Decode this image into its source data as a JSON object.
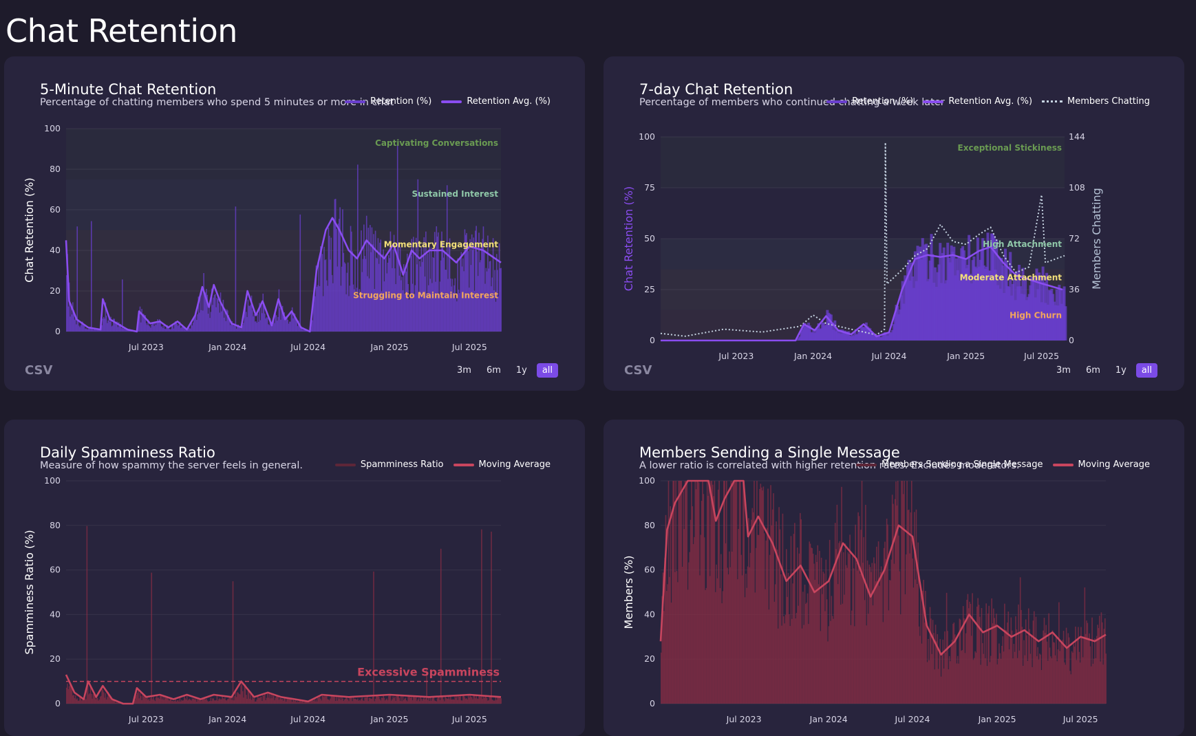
{
  "page": {
    "title": "Chat Retention"
  },
  "colors": {
    "purple": "#8a4df0",
    "purple_fill": "#6a3fcf",
    "red": "#c8455e",
    "red_fill": "#8a2e44",
    "dotted": "#c6d4e2",
    "accent": "#7b4be6"
  },
  "common": {
    "csv_label": "CSV",
    "ranges": [
      "3m",
      "6m",
      "1y",
      "all"
    ],
    "active_range": "all"
  },
  "chart_data": [
    {
      "id": "five_min",
      "type": "area",
      "title": "5-Minute Chat Retention",
      "subtitle": "Percentage of chatting members who spend 5 minutes or more in chat",
      "legend": [
        "Retention (%)",
        "Retention Avg. (%)"
      ],
      "ylabel": "Chat Retention (%)",
      "ylim": [
        0,
        100
      ],
      "yticks": [
        0,
        20,
        40,
        60,
        80,
        100
      ],
      "xlim": [
        "2023-01-01",
        "2025-09-10"
      ],
      "xticks": [
        "Jul 2023",
        "Jan 2024",
        "Jul 2024",
        "Jan 2025",
        "Jul 2025"
      ],
      "bands": [
        {
          "label": "Captivating Conversations",
          "from": 75,
          "to": 100,
          "color": "#6a9b52"
        },
        {
          "label": "Sustained Interest",
          "from": 50,
          "to": 75,
          "color": "#8fc7a8"
        },
        {
          "label": "Momentary Engagement",
          "from": 25,
          "to": 50,
          "color": "#f3e07a"
        },
        {
          "label": "Struggling to Maintain Interest",
          "from": 0,
          "to": 25,
          "color": "#f2a65e"
        }
      ],
      "avg_points": [
        [
          "2023-01-01",
          45
        ],
        [
          "2023-01-08",
          15
        ],
        [
          "2023-01-25",
          6
        ],
        [
          "2023-02-20",
          2
        ],
        [
          "2023-03-20",
          1
        ],
        [
          "2023-03-25",
          16
        ],
        [
          "2023-04-10",
          6
        ],
        [
          "2023-05-20",
          1
        ],
        [
          "2023-06-10",
          0
        ],
        [
          "2023-06-15",
          10
        ],
        [
          "2023-07-10",
          4
        ],
        [
          "2023-08-01",
          5
        ],
        [
          "2023-08-20",
          2
        ],
        [
          "2023-09-10",
          5
        ],
        [
          "2023-10-01",
          1
        ],
        [
          "2023-10-20",
          8
        ],
        [
          "2023-11-05",
          22
        ],
        [
          "2023-11-20",
          12
        ],
        [
          "2023-12-01",
          23
        ],
        [
          "2023-12-15",
          15
        ],
        [
          "2024-01-10",
          4
        ],
        [
          "2024-02-01",
          2
        ],
        [
          "2024-02-15",
          20
        ],
        [
          "2024-03-05",
          8
        ],
        [
          "2024-03-20",
          15
        ],
        [
          "2024-04-10",
          3
        ],
        [
          "2024-04-25",
          16
        ],
        [
          "2024-05-10",
          6
        ],
        [
          "2024-05-25",
          10
        ],
        [
          "2024-06-15",
          2
        ],
        [
          "2024-07-05",
          0
        ],
        [
          "2024-07-20",
          30
        ],
        [
          "2024-08-10",
          50
        ],
        [
          "2024-08-25",
          56
        ],
        [
          "2024-09-10",
          50
        ],
        [
          "2024-10-01",
          40
        ],
        [
          "2024-10-20",
          36
        ],
        [
          "2024-11-10",
          45
        ],
        [
          "2024-12-01",
          40
        ],
        [
          "2024-12-20",
          36
        ],
        [
          "2025-01-10",
          43
        ],
        [
          "2025-02-01",
          28
        ],
        [
          "2025-02-20",
          40
        ],
        [
          "2025-03-10",
          36
        ],
        [
          "2025-04-01",
          40
        ],
        [
          "2025-05-01",
          40
        ],
        [
          "2025-06-01",
          34
        ],
        [
          "2025-07-01",
          42
        ],
        [
          "2025-08-01",
          40
        ],
        [
          "2025-09-10",
          34
        ]
      ],
      "bars_window": [
        "2023-01-01",
        "2025-09-10"
      ]
    },
    {
      "id": "seven_day",
      "type": "area",
      "title": "7-day Chat Retention",
      "subtitle": "Percentage of members who continued chatting a week later",
      "legend": [
        "Retention (%)",
        "Retention Avg. (%)",
        "Members Chatting"
      ],
      "ylabel": "Chat Retention (%)",
      "ylabel_right": "Members Chatting",
      "ylim": [
        0,
        100
      ],
      "yticks": [
        0,
        25,
        50,
        75,
        100
      ],
      "ylim_right": [
        0,
        144
      ],
      "yticks_right": [
        0,
        36,
        72,
        108,
        144
      ],
      "xlim": [
        "2023-01-01",
        "2025-08-25"
      ],
      "xticks": [
        "Jul 2023",
        "Jan 2024",
        "Jul 2024",
        "Jan 2025",
        "Jul 2025"
      ],
      "bands": [
        {
          "label": "Exceptional Stickiness",
          "from": 75,
          "to": 100,
          "color": "#6a9b52"
        },
        {
          "label": "High Attachment",
          "from": 35,
          "to": 50,
          "color": "#8fc7a8"
        },
        {
          "label": "Moderate Attachment",
          "from": 15,
          "to": 35,
          "color": "#f3e07a"
        },
        {
          "label": "High Churn",
          "from": 0,
          "to": 15,
          "color": "#f2a65e"
        }
      ],
      "avg_points": [
        [
          "2023-01-01",
          0
        ],
        [
          "2023-11-20",
          0
        ],
        [
          "2023-12-10",
          8
        ],
        [
          "2024-01-05",
          5
        ],
        [
          "2024-02-01",
          12
        ],
        [
          "2024-03-01",
          5
        ],
        [
          "2024-04-01",
          3
        ],
        [
          "2024-05-01",
          8
        ],
        [
          "2024-06-01",
          2
        ],
        [
          "2024-07-01",
          4
        ],
        [
          "2024-08-01",
          25
        ],
        [
          "2024-09-01",
          40
        ],
        [
          "2024-10-01",
          42
        ],
        [
          "2024-11-01",
          41
        ],
        [
          "2024-12-01",
          42
        ],
        [
          "2025-01-01",
          40
        ],
        [
          "2025-02-01",
          44
        ],
        [
          "2025-03-01",
          46
        ],
        [
          "2025-04-01",
          38
        ],
        [
          "2025-05-01",
          32
        ],
        [
          "2025-06-01",
          30
        ],
        [
          "2025-07-01",
          28
        ],
        [
          "2025-08-20",
          25
        ]
      ],
      "members_points": [
        [
          "2023-01-01",
          5
        ],
        [
          "2023-03-01",
          3
        ],
        [
          "2023-06-01",
          8
        ],
        [
          "2023-09-01",
          6
        ],
        [
          "2023-12-01",
          10
        ],
        [
          "2024-01-01",
          18
        ],
        [
          "2024-02-01",
          12
        ],
        [
          "2024-04-01",
          8
        ],
        [
          "2024-06-01",
          4
        ],
        [
          "2024-06-20",
          8
        ],
        [
          "2024-06-22",
          140
        ],
        [
          "2024-06-26",
          40
        ],
        [
          "2024-08-01",
          50
        ],
        [
          "2024-09-01",
          60
        ],
        [
          "2024-10-01",
          65
        ],
        [
          "2024-11-01",
          82
        ],
        [
          "2024-12-01",
          70
        ],
        [
          "2025-01-01",
          68
        ],
        [
          "2025-02-01",
          75
        ],
        [
          "2025-03-01",
          80
        ],
        [
          "2025-04-01",
          60
        ],
        [
          "2025-05-01",
          48
        ],
        [
          "2025-06-01",
          52
        ],
        [
          "2025-07-01",
          103
        ],
        [
          "2025-07-10",
          55
        ],
        [
          "2025-08-25",
          60
        ]
      ],
      "bars_window": [
        "2023-11-20",
        "2025-08-25"
      ]
    },
    {
      "id": "spam",
      "type": "area",
      "title": "Daily Spamminess Ratio",
      "subtitle": "Measure of how spammy the server feels in general.",
      "legend": [
        "Spamminess Ratio",
        "Moving Average"
      ],
      "ylabel": "Spamminess Ratio (%)",
      "ylim": [
        0,
        100
      ],
      "yticks": [
        0,
        20,
        40,
        60,
        80,
        100
      ],
      "xlim": [
        "2023-01-01",
        "2025-09-10"
      ],
      "xticks": [
        "Jul 2023",
        "Jan 2024",
        "Jul 2024",
        "Jan 2025",
        "Jul 2025"
      ],
      "threshold": {
        "label": "Excessive Spamminess",
        "value": 10
      },
      "avg_points": [
        [
          "2023-01-01",
          13
        ],
        [
          "2023-01-20",
          5
        ],
        [
          "2023-02-10",
          2
        ],
        [
          "2023-02-20",
          10
        ],
        [
          "2023-03-10",
          3
        ],
        [
          "2023-03-25",
          8
        ],
        [
          "2023-04-15",
          2
        ],
        [
          "2023-05-10",
          0
        ],
        [
          "2023-06-01",
          0
        ],
        [
          "2023-06-10",
          7
        ],
        [
          "2023-07-01",
          3
        ],
        [
          "2023-08-01",
          4
        ],
        [
          "2023-09-01",
          2
        ],
        [
          "2023-10-01",
          4
        ],
        [
          "2023-11-01",
          2
        ],
        [
          "2023-12-01",
          4
        ],
        [
          "2024-01-10",
          3
        ],
        [
          "2024-02-01",
          10
        ],
        [
          "2024-03-01",
          3
        ],
        [
          "2024-04-01",
          5
        ],
        [
          "2024-05-01",
          3
        ],
        [
          "2024-06-01",
          2
        ],
        [
          "2024-07-01",
          1
        ],
        [
          "2024-08-01",
          4
        ],
        [
          "2024-10-01",
          3
        ],
        [
          "2025-01-01",
          4
        ],
        [
          "2025-04-01",
          3
        ],
        [
          "2025-07-01",
          4
        ],
        [
          "2025-09-10",
          3
        ]
      ]
    },
    {
      "id": "single_msg",
      "type": "area",
      "title": "Members Sending a Single Message",
      "subtitle": "A lower ratio is correlated with higher retention rates. Excludes moderators.",
      "legend": [
        "Members Sending a Single Message",
        "Moving Average"
      ],
      "ylabel": "Members (%)",
      "ylim": [
        0,
        100
      ],
      "yticks": [
        0,
        20,
        40,
        60,
        80,
        100
      ],
      "xlim": [
        "2023-01-01",
        "2025-08-25"
      ],
      "xticks": [
        "Jul 2023",
        "Jan 2024",
        "Jul 2024",
        "Jan 2025",
        "Jul 2025"
      ],
      "avg_points": [
        [
          "2023-01-01",
          28
        ],
        [
          "2023-01-15",
          78
        ],
        [
          "2023-02-01",
          90
        ],
        [
          "2023-03-01",
          100
        ],
        [
          "2023-04-15",
          100
        ],
        [
          "2023-05-01",
          82
        ],
        [
          "2023-05-20",
          92
        ],
        [
          "2023-06-10",
          100
        ],
        [
          "2023-06-30",
          100
        ],
        [
          "2023-07-10",
          75
        ],
        [
          "2023-08-01",
          84
        ],
        [
          "2023-09-01",
          72
        ],
        [
          "2023-10-01",
          55
        ],
        [
          "2023-11-01",
          62
        ],
        [
          "2023-12-01",
          50
        ],
        [
          "2024-01-01",
          55
        ],
        [
          "2024-02-01",
          72
        ],
        [
          "2024-03-01",
          65
        ],
        [
          "2024-04-01",
          48
        ],
        [
          "2024-05-01",
          60
        ],
        [
          "2024-06-01",
          80
        ],
        [
          "2024-07-01",
          75
        ],
        [
          "2024-08-01",
          35
        ],
        [
          "2024-09-01",
          22
        ],
        [
          "2024-10-01",
          28
        ],
        [
          "2024-11-01",
          40
        ],
        [
          "2024-12-01",
          32
        ],
        [
          "2025-01-01",
          35
        ],
        [
          "2025-02-01",
          30
        ],
        [
          "2025-03-01",
          33
        ],
        [
          "2025-04-01",
          28
        ],
        [
          "2025-05-01",
          32
        ],
        [
          "2025-06-01",
          25
        ],
        [
          "2025-07-01",
          30
        ],
        [
          "2025-08-01",
          28
        ],
        [
          "2025-08-25",
          31
        ]
      ]
    }
  ]
}
